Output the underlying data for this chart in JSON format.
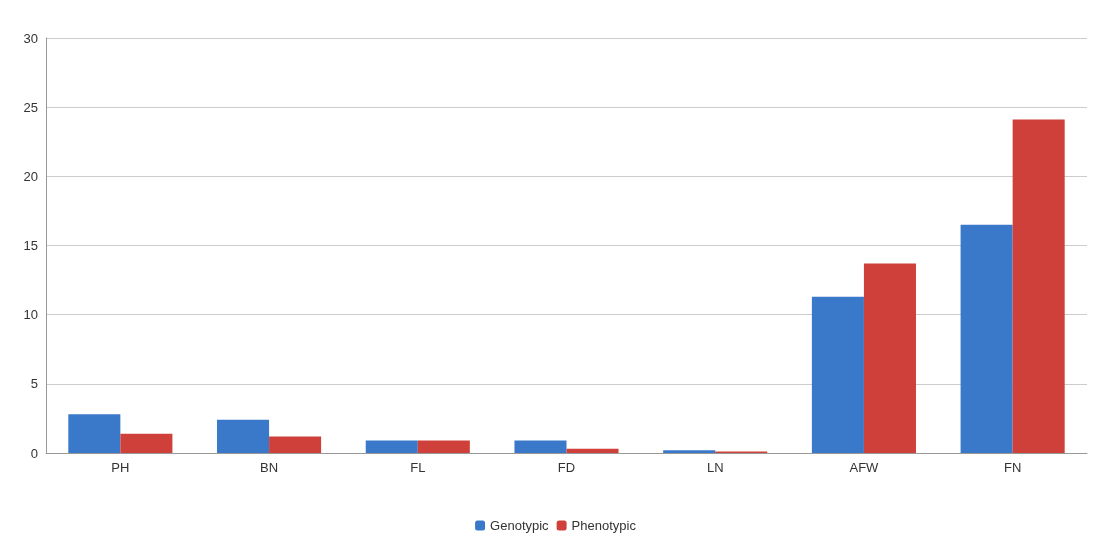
{
  "chart_data": {
    "type": "bar",
    "categories": [
      "PH",
      "BN",
      "FL",
      "FD",
      "LN",
      "AFW",
      "FN"
    ],
    "series": [
      {
        "name": "Genotypic",
        "color": "#3a78c9",
        "values": [
          2.8,
          2.4,
          0.9,
          0.9,
          0.2,
          11.3,
          16.5
        ]
      },
      {
        "name": "Phenotypic",
        "color": "#d0403a",
        "values": [
          1.4,
          1.2,
          0.9,
          0.3,
          0.1,
          13.7,
          24.1
        ]
      }
    ],
    "ylim": [
      0,
      30
    ],
    "yticks": [
      0,
      5,
      10,
      15,
      20,
      25,
      30
    ],
    "grid": "y",
    "legend": "bottom"
  }
}
